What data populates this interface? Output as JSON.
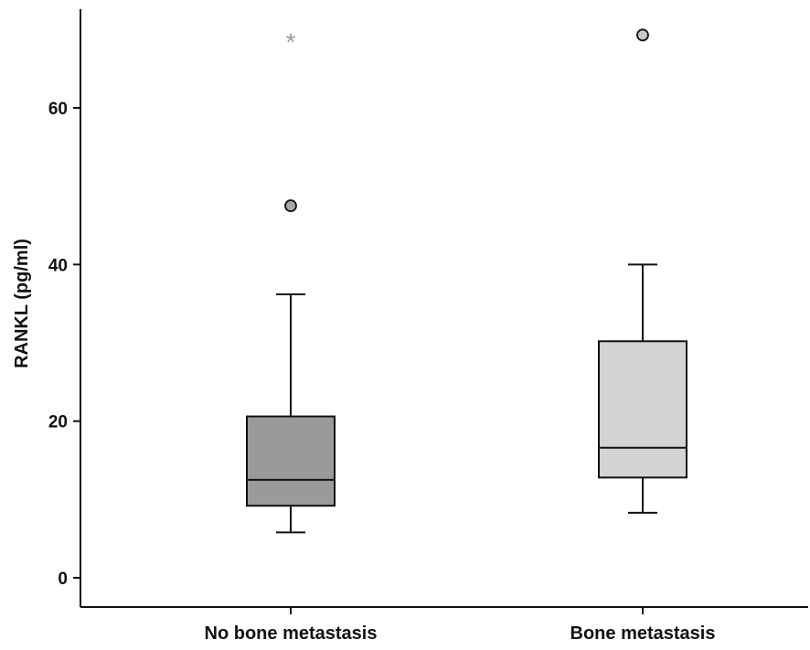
{
  "chart_data": {
    "type": "boxplot",
    "ylabel": "RANKL (pg/ml)",
    "xlabel": "",
    "ylim": [
      -4,
      72
    ],
    "yticks": [
      0,
      20,
      40,
      60
    ],
    "grid": false,
    "categories": [
      "No bone metastasis",
      "Bone metastasis"
    ],
    "boxes": [
      {
        "category": "No bone metastasis",
        "whisker_low": 5.8,
        "q1": 9.2,
        "median": 12.5,
        "q3": 20.6,
        "whisker_high": 36.2,
        "outliers": [
          47.5
        ],
        "extremes": [
          68.7
        ],
        "color": "#9a9a9a"
      },
      {
        "category": "Bone metastasis",
        "whisker_low": 8.3,
        "q1": 12.8,
        "median": 16.6,
        "q3": 30.2,
        "whisker_high": 40.0,
        "outliers": [
          69.3
        ],
        "extremes": [],
        "color": "#d3d3d3"
      }
    ],
    "outlier_color": "#a8a8a8",
    "extreme_color": "#9a9a9a"
  }
}
